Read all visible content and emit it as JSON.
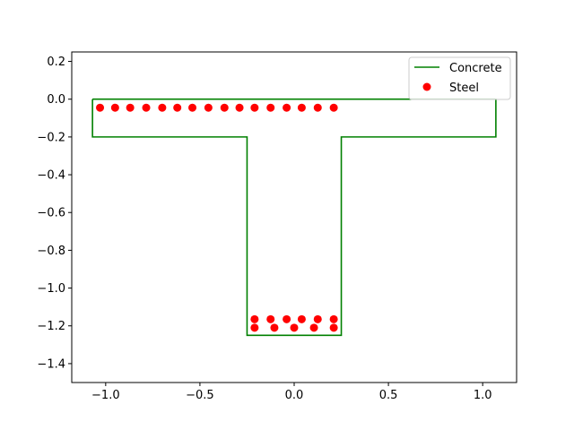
{
  "chart_data": {
    "type": "scatter",
    "title": "",
    "xlabel": "",
    "ylabel": "",
    "xlim": [
      -1.18,
      1.18
    ],
    "ylim": [
      -1.5,
      0.25
    ],
    "xticks": [
      -1.0,
      -0.5,
      0.0,
      0.5,
      1.0
    ],
    "xtick_labels": [
      "−1.0",
      "−0.5",
      "0.0",
      "0.5",
      "1.0"
    ],
    "yticks": [
      0.2,
      0.0,
      -0.2,
      -0.4,
      -0.6,
      -0.8,
      -1.0,
      -1.2,
      -1.4
    ],
    "ytick_labels": [
      "0.2",
      "0.0",
      "−0.2",
      "−0.4",
      "−0.6",
      "−0.8",
      "−1.0",
      "−1.2",
      "−1.4"
    ],
    "grid": false,
    "legend_position": "top-right",
    "series": [
      {
        "name": "Concrete",
        "kind": "line",
        "color": "#008000",
        "x": [
          -1.07,
          1.07,
          1.07,
          0.25,
          0.25,
          -0.25,
          -0.25,
          -1.07,
          -1.07
        ],
        "y": [
          0.0,
          0.0,
          -0.2,
          -0.2,
          -1.25,
          -1.25,
          -0.2,
          -0.2,
          0.0
        ]
      },
      {
        "name": "Steel",
        "kind": "scatter",
        "color": "#ff0000",
        "x": [
          -1.03,
          -0.95,
          -0.87,
          -0.785,
          -0.7,
          -0.62,
          -0.54,
          -0.455,
          -0.37,
          -0.29,
          -0.21,
          -0.125,
          -0.04,
          0.04,
          0.125,
          0.21,
          -0.21,
          -0.125,
          -0.04,
          0.04,
          0.125,
          0.21,
          -0.21,
          -0.105,
          0.0,
          0.105,
          0.21
        ],
        "y": [
          -0.045,
          -0.045,
          -0.045,
          -0.045,
          -0.045,
          -0.045,
          -0.045,
          -0.045,
          -0.045,
          -0.045,
          -0.045,
          -0.045,
          -0.045,
          -0.045,
          -0.045,
          -0.045,
          -1.165,
          -1.165,
          -1.165,
          -1.165,
          -1.165,
          -1.165,
          -1.21,
          -1.21,
          -1.21,
          -1.21,
          -1.21
        ]
      }
    ]
  }
}
